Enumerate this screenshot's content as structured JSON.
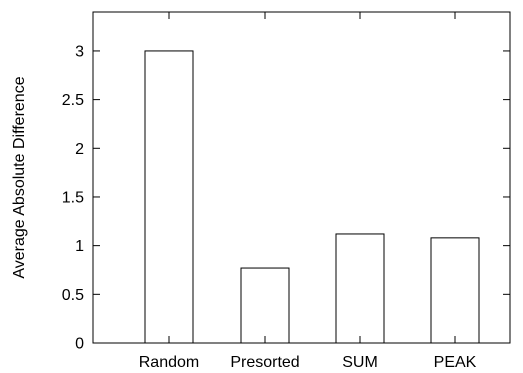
{
  "chart_data": {
    "type": "bar",
    "categories": [
      "Random",
      "Presorted",
      "SUM",
      "PEAK"
    ],
    "values": [
      3.0,
      0.77,
      1.12,
      1.08
    ],
    "title": "",
    "xlabel": "",
    "ylabel": "Average Absolute Difference",
    "ylim": [
      0,
      3.4
    ],
    "yticks": [
      "0",
      "0.5",
      "1",
      "1.5",
      "2",
      "2.5",
      "3"
    ],
    "grid": false,
    "legend": "none",
    "colors": {
      "bar_fill": "#ffffff",
      "bar_stroke": "#000000",
      "axis": "#000000"
    }
  }
}
